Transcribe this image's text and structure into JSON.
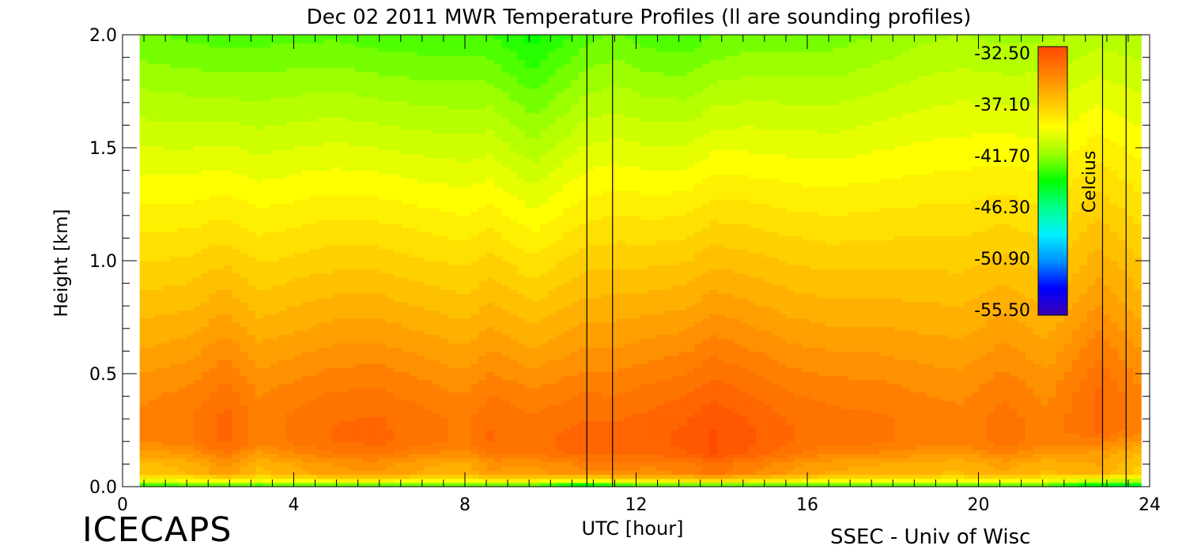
{
  "chart_data": {
    "type": "heatmap",
    "title": "Dec 02 2011 MWR Temperature Profiles (ll are sounding profiles)",
    "xlabel": "UTC [hour]",
    "ylabel": "Height [km]",
    "xlim": [
      0,
      24
    ],
    "ylim": [
      0,
      2.0
    ],
    "x_ticks": [
      0,
      4,
      8,
      12,
      16,
      20,
      24
    ],
    "x_tick_labels": [
      "0",
      "4",
      "8",
      "12",
      "16",
      "20",
      "24"
    ],
    "y_ticks": [
      0,
      0.5,
      1.0,
      1.5,
      2.0
    ],
    "y_tick_labels": [
      "0.0",
      "0.5",
      "1.0",
      "1.5",
      "2.0"
    ],
    "grid": false,
    "colorbar": {
      "label": "Celcius",
      "range": [
        -55.5,
        -32.5
      ],
      "tick_labels": [
        "-32.50",
        "-37.10",
        "-41.70",
        "-46.30",
        "-50.90",
        "-55.50"
      ],
      "tick_values": [
        -32.5,
        -37.1,
        -41.7,
        -46.3,
        -50.9,
        -55.5
      ],
      "colormap": [
        "#3a00b0",
        "#0000ff",
        "#0090ff",
        "#00f0ff",
        "#00ff8c",
        "#00ff00",
        "#9cff00",
        "#ffff00",
        "#ffc000",
        "#ff8000",
        "#ff4a00"
      ],
      "placement": "top-right"
    },
    "data_start_hour": 0.4,
    "data_end_hour": 23.8,
    "sounding_profiles_hour": [
      [
        10.85,
        11.45
      ],
      [
        22.9,
        23.45
      ]
    ],
    "profile_hours": [
      0.4,
      1.6,
      2.4,
      3.2,
      4.2,
      5.0,
      6.0,
      7.0,
      8.0,
      8.6,
      9.6,
      10.8,
      11.5,
      12.4,
      13.2,
      13.8,
      14.6,
      15.6,
      16.6,
      17.6,
      18.6,
      19.6,
      20.6,
      21.6,
      22.8,
      23.8
    ],
    "heights_km": [
      0.0,
      0.03,
      0.06,
      0.1,
      0.15,
      0.2,
      0.25,
      0.3,
      0.35,
      0.4,
      0.45,
      0.5,
      0.6,
      0.7,
      0.8,
      0.9,
      1.0,
      1.2,
      1.4,
      1.6,
      1.8,
      2.0
    ],
    "inversion_peak_c": [
      -35.0,
      -34.6,
      -33.7,
      -34.8,
      -34.3,
      -33.9,
      -33.8,
      -34.3,
      -34.7,
      -33.9,
      -34.2,
      -33.6,
      -33.7,
      -33.5,
      -33.2,
      -32.7,
      -33.2,
      -33.9,
      -34.3,
      -34.4,
      -34.7,
      -34.9,
      -34.2,
      -34.9,
      -33.8,
      -35.0
    ],
    "inversion_height_km": [
      0.33,
      0.33,
      0.3,
      0.33,
      0.3,
      0.28,
      0.28,
      0.3,
      0.3,
      0.27,
      0.25,
      0.22,
      0.22,
      0.25,
      0.25,
      0.24,
      0.25,
      0.27,
      0.3,
      0.3,
      0.3,
      0.3,
      0.3,
      0.3,
      0.4,
      0.4
    ],
    "inversion_depth_km": [
      0.18,
      0.18,
      0.26,
      0.18,
      0.22,
      0.24,
      0.24,
      0.22,
      0.2,
      0.2,
      0.2,
      0.2,
      0.2,
      0.22,
      0.24,
      0.24,
      0.24,
      0.22,
      0.2,
      0.2,
      0.2,
      0.2,
      0.22,
      0.2,
      0.2,
      0.2
    ],
    "upper_temp_2km_c": [
      -42.5,
      -42.7,
      -42.9,
      -42.8,
      -42.7,
      -42.7,
      -42.9,
      -43.0,
      -43.0,
      -43.1,
      -44.0,
      -42.8,
      -42.5,
      -42.9,
      -43.0,
      -42.6,
      -42.4,
      -42.3,
      -42.3,
      -42.0,
      -41.6,
      -41.4,
      -41.6,
      -41.5,
      -41.1,
      -41.3
    ],
    "surface_temp_c": [
      -44.0,
      -44.0,
      -44.0,
      -44.0,
      -44.0,
      -44.0,
      -44.0,
      -44.0,
      -44.0,
      -44.0,
      -44.0,
      -46.5,
      -45.0,
      -44.0,
      -44.0,
      -44.0,
      -44.0,
      -44.0,
      -44.0,
      -44.0,
      -44.0,
      -44.0,
      -44.0,
      -44.0,
      -46.0,
      -46.0
    ]
  },
  "branding": {
    "project": "ICECAPS",
    "institution": "SSEC - Univ of Wisc"
  }
}
